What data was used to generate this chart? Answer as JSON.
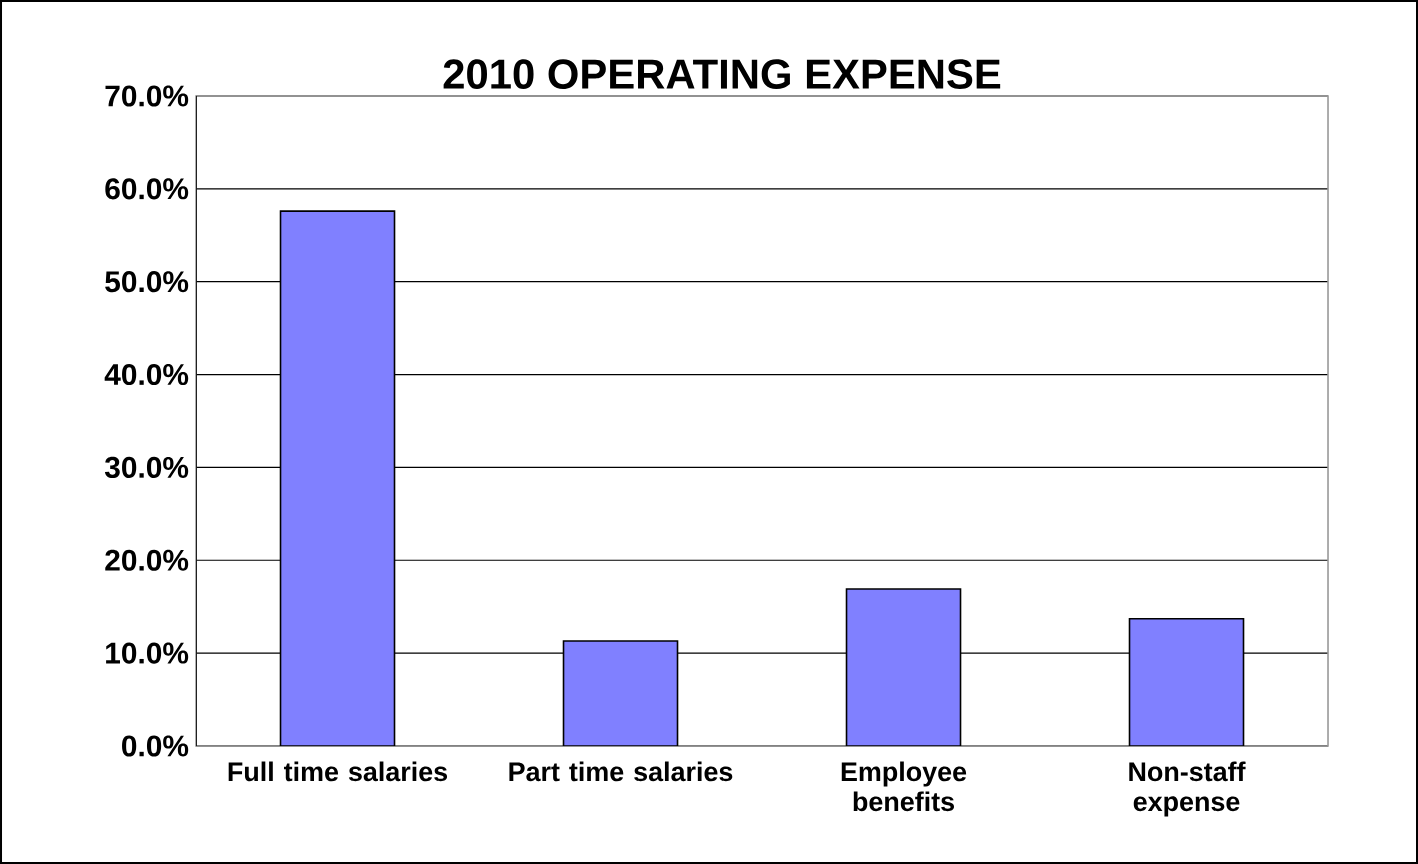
{
  "chart_data": {
    "type": "bar",
    "title": "2010  OPERATING EXPENSE",
    "categories": [
      "Full time salaries",
      "Part time salaries",
      "Employee benefits",
      "Non-staff expense"
    ],
    "values": [
      57.6,
      11.3,
      16.9,
      13.7
    ],
    "color": "#8080ff",
    "ylim": [
      0,
      70
    ],
    "yticks": [
      {
        "value": 0,
        "label": "0.0%"
      },
      {
        "value": 10,
        "label": "10.0%"
      },
      {
        "value": 20,
        "label": "20.0%"
      },
      {
        "value": 30,
        "label": "30.0%"
      },
      {
        "value": 40,
        "label": "40.0%"
      },
      {
        "value": 50,
        "label": "50.0%"
      },
      {
        "value": 60,
        "label": "60.0%"
      },
      {
        "value": 70,
        "label": "70.0%"
      }
    ],
    "grid": "y"
  }
}
